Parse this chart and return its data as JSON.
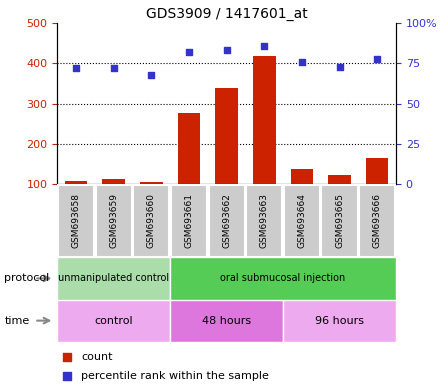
{
  "title": "GDS3909 / 1417601_at",
  "samples": [
    "GSM693658",
    "GSM693659",
    "GSM693660",
    "GSM693661",
    "GSM693662",
    "GSM693663",
    "GSM693664",
    "GSM693665",
    "GSM693666"
  ],
  "bar_values": [
    107,
    112,
    105,
    278,
    338,
    418,
    138,
    122,
    165
  ],
  "scatter_values": [
    72,
    72,
    68,
    82,
    83,
    86,
    76,
    73,
    78
  ],
  "ylim_left": [
    100,
    500
  ],
  "ylim_right": [
    0,
    100
  ],
  "yticks_left": [
    100,
    200,
    300,
    400,
    500
  ],
  "ytick_labels_left": [
    "100",
    "200",
    "300",
    "400",
    "500"
  ],
  "yticks_right": [
    0,
    25,
    50,
    75,
    100
  ],
  "ytick_labels_right": [
    "0",
    "25",
    "50",
    "75",
    "100%"
  ],
  "bar_color": "#cc2200",
  "scatter_color": "#3333cc",
  "protocol_groups": [
    {
      "label": "unmanipulated control",
      "start": 0,
      "end": 3,
      "color": "#aaddaa"
    },
    {
      "label": "oral submucosal injection",
      "start": 3,
      "end": 9,
      "color": "#55cc55"
    }
  ],
  "time_groups": [
    {
      "label": "control",
      "start": 0,
      "end": 3,
      "color": "#eeaaee"
    },
    {
      "label": "48 hours",
      "start": 3,
      "end": 6,
      "color": "#dd77dd"
    },
    {
      "label": "96 hours",
      "start": 6,
      "end": 9,
      "color": "#eeaaee"
    }
  ],
  "left_tick_color": "#cc2200",
  "right_tick_color": "#3333cc",
  "protocol_label": "protocol",
  "time_label": "time",
  "legend_count": "count",
  "legend_percentile": "percentile rank within the sample",
  "sample_box_color": "#cccccc",
  "right_ytick_labels": [
    "0",
    "25",
    "50",
    "75",
    "100%"
  ]
}
